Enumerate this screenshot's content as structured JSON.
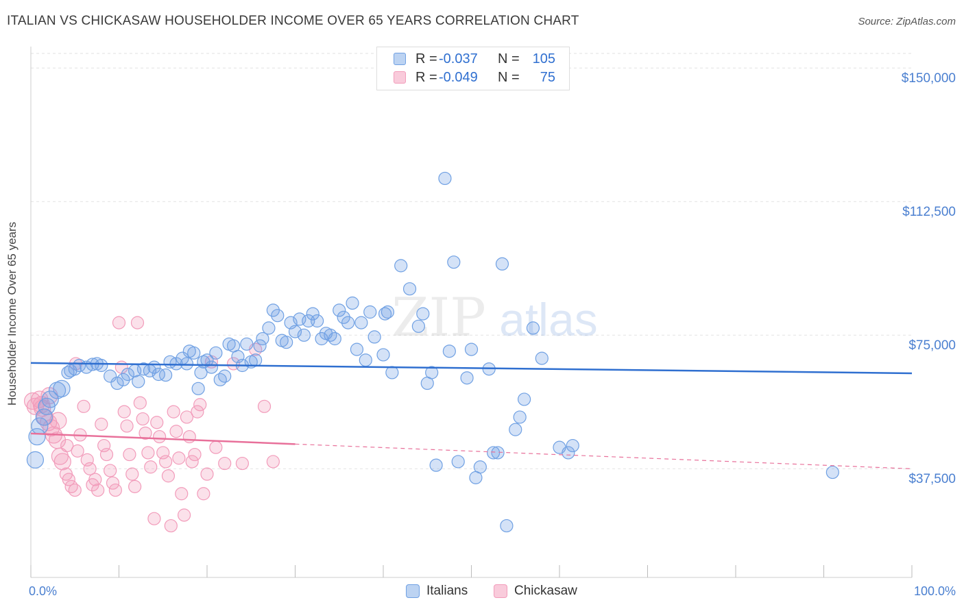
{
  "title": "ITALIAN VS CHICKASAW HOUSEHOLDER INCOME OVER 65 YEARS CORRELATION CHART",
  "source": "Source: ZipAtlas.com",
  "watermark": {
    "zip": "ZIP",
    "atlas": "atlas"
  },
  "colors": {
    "italians": "#6fa0e3",
    "chickasaw": "#f29bba",
    "italians_line": "#2f6fd0",
    "chickasaw_line": "#e8709a",
    "tick_text": "#4a7fd0"
  },
  "legend": {
    "rows": [
      {
        "r_label": "R =",
        "r_value": "-0.037",
        "n_label": "N =",
        "n_value": "105"
      },
      {
        "r_label": "R =",
        "r_value": "-0.049",
        "n_label": "N =",
        "n_value": "75"
      }
    ]
  },
  "chart_data": {
    "type": "scatter",
    "ylabel": "Householder Income Over 65 years",
    "xlabel": "",
    "xlim": [
      0,
      100
    ],
    "ylim": [
      7000,
      156000
    ],
    "y_ticks": [
      {
        "value": 37500,
        "label": "$37,500"
      },
      {
        "value": 75000,
        "label": "$75,000"
      },
      {
        "value": 112500,
        "label": "$112,500"
      },
      {
        "value": 150000,
        "label": "$150,000"
      }
    ],
    "x_tick_labels": {
      "min": "0.0%",
      "max": "100.0%"
    },
    "grid": true,
    "legend_position": "top-center",
    "series": [
      {
        "name": "Italians",
        "regression": {
          "x": [
            0,
            100
          ],
          "y": [
            67200,
            64300
          ],
          "solid_until": 100
        },
        "points": [
          [
            0.5,
            40000
          ],
          [
            0.7,
            46500
          ],
          [
            1.0,
            49500
          ],
          [
            1.5,
            52000
          ],
          [
            1.8,
            55000
          ],
          [
            2.2,
            57000
          ],
          [
            3.0,
            59500
          ],
          [
            3.5,
            60000
          ],
          [
            4.2,
            64500
          ],
          [
            4.5,
            65000
          ],
          [
            5.0,
            65500
          ],
          [
            5.5,
            66500
          ],
          [
            6.3,
            66000
          ],
          [
            7.0,
            66800
          ],
          [
            7.5,
            67000
          ],
          [
            8.0,
            66500
          ],
          [
            9.0,
            63500
          ],
          [
            9.8,
            61500
          ],
          [
            10.5,
            62500
          ],
          [
            11.0,
            64000
          ],
          [
            11.8,
            65000
          ],
          [
            12.2,
            62000
          ],
          [
            12.8,
            65500
          ],
          [
            13.5,
            65000
          ],
          [
            14.0,
            66000
          ],
          [
            14.5,
            64000
          ],
          [
            15.3,
            63800
          ],
          [
            15.8,
            67500
          ],
          [
            16.5,
            67000
          ],
          [
            17.2,
            68500
          ],
          [
            17.7,
            67000
          ],
          [
            18.0,
            70500
          ],
          [
            18.5,
            70000
          ],
          [
            19.0,
            60000
          ],
          [
            19.3,
            64500
          ],
          [
            19.6,
            67500
          ],
          [
            20.0,
            68000
          ],
          [
            20.5,
            66000
          ],
          [
            21.0,
            70000
          ],
          [
            21.5,
            62500
          ],
          [
            22.0,
            63500
          ],
          [
            22.5,
            72500
          ],
          [
            23.0,
            72000
          ],
          [
            23.5,
            69000
          ],
          [
            24.0,
            66500
          ],
          [
            24.5,
            72500
          ],
          [
            25.0,
            67500
          ],
          [
            25.5,
            68000
          ],
          [
            26.0,
            72000
          ],
          [
            26.3,
            74000
          ],
          [
            27.0,
            77000
          ],
          [
            27.5,
            82000
          ],
          [
            28.0,
            80500
          ],
          [
            28.5,
            73500
          ],
          [
            29.0,
            73000
          ],
          [
            29.5,
            78500
          ],
          [
            30.0,
            76000
          ],
          [
            30.5,
            79500
          ],
          [
            31.0,
            75000
          ],
          [
            31.5,
            79000
          ],
          [
            32.0,
            81000
          ],
          [
            32.5,
            79000
          ],
          [
            33.0,
            74000
          ],
          [
            33.5,
            75500
          ],
          [
            34.0,
            75000
          ],
          [
            34.5,
            74000
          ],
          [
            35.0,
            82000
          ],
          [
            35.5,
            80000
          ],
          [
            36.0,
            78500
          ],
          [
            36.5,
            84000
          ],
          [
            37.0,
            71000
          ],
          [
            37.5,
            78500
          ],
          [
            38.0,
            68000
          ],
          [
            38.5,
            81500
          ],
          [
            39.0,
            74500
          ],
          [
            40.0,
            69500
          ],
          [
            40.5,
            81500
          ],
          [
            41.0,
            64500
          ],
          [
            42.0,
            94500
          ],
          [
            43.0,
            88000
          ],
          [
            40.2,
            81000
          ],
          [
            44.0,
            77500
          ],
          [
            44.5,
            81000
          ],
          [
            45.0,
            61500
          ],
          [
            45.5,
            64500
          ],
          [
            46.0,
            38500
          ],
          [
            47.0,
            119000
          ],
          [
            47.5,
            70500
          ],
          [
            48.0,
            95500
          ],
          [
            48.5,
            39500
          ],
          [
            49.5,
            63000
          ],
          [
            50.0,
            71000
          ],
          [
            50.5,
            35000
          ],
          [
            51.0,
            38000
          ],
          [
            52.0,
            65500
          ],
          [
            52.5,
            42000
          ],
          [
            53.0,
            42000
          ],
          [
            53.5,
            95000
          ],
          [
            55.0,
            48500
          ],
          [
            55.5,
            52000
          ],
          [
            56.0,
            57000
          ],
          [
            57.0,
            77000
          ],
          [
            58.0,
            68500
          ],
          [
            60.0,
            43500
          ],
          [
            61.0,
            42000
          ],
          [
            61.5,
            44000
          ],
          [
            91.0,
            36500
          ],
          [
            54.0,
            21500
          ]
        ]
      },
      {
        "name": "Chickasaw",
        "regression": {
          "x": [
            0,
            100
          ],
          "y": [
            47400,
            37500
          ],
          "solid_until": 30
        },
        "points": [
          [
            0.2,
            56500
          ],
          [
            0.5,
            55000
          ],
          [
            1.0,
            57000
          ],
          [
            1.3,
            54500
          ],
          [
            1.6,
            52000
          ],
          [
            2.0,
            50500
          ],
          [
            2.3,
            49000
          ],
          [
            2.6,
            47000
          ],
          [
            3.0,
            45500
          ],
          [
            3.3,
            41000
          ],
          [
            3.6,
            39500
          ],
          [
            4.0,
            36000
          ],
          [
            4.3,
            34500
          ],
          [
            4.6,
            32500
          ],
          [
            5.0,
            31500
          ],
          [
            5.3,
            42500
          ],
          [
            5.6,
            47000
          ],
          [
            6.0,
            55000
          ],
          [
            6.4,
            40000
          ],
          [
            6.7,
            37500
          ],
          [
            7.0,
            33000
          ],
          [
            7.3,
            34500
          ],
          [
            7.6,
            31500
          ],
          [
            8.0,
            50000
          ],
          [
            8.3,
            44000
          ],
          [
            8.6,
            41500
          ],
          [
            9.0,
            37000
          ],
          [
            9.3,
            33500
          ],
          [
            9.6,
            31500
          ],
          [
            10.0,
            78500
          ],
          [
            10.3,
            66000
          ],
          [
            10.6,
            53500
          ],
          [
            10.9,
            49500
          ],
          [
            11.2,
            41500
          ],
          [
            11.5,
            36000
          ],
          [
            11.8,
            32500
          ],
          [
            12.1,
            78500
          ],
          [
            12.4,
            56000
          ],
          [
            12.7,
            51500
          ],
          [
            13.0,
            47500
          ],
          [
            13.3,
            42000
          ],
          [
            13.6,
            38000
          ],
          [
            14.0,
            23500
          ],
          [
            14.3,
            50500
          ],
          [
            14.6,
            46500
          ],
          [
            15.0,
            42000
          ],
          [
            15.3,
            39500
          ],
          [
            15.6,
            35500
          ],
          [
            15.9,
            21500
          ],
          [
            16.2,
            53500
          ],
          [
            16.5,
            48000
          ],
          [
            16.8,
            40500
          ],
          [
            17.1,
            30500
          ],
          [
            17.4,
            24500
          ],
          [
            17.7,
            52000
          ],
          [
            18.0,
            46500
          ],
          [
            18.3,
            39500
          ],
          [
            18.6,
            41500
          ],
          [
            18.9,
            53500
          ],
          [
            19.2,
            55500
          ],
          [
            19.6,
            30500
          ],
          [
            20.0,
            36000
          ],
          [
            20.5,
            67500
          ],
          [
            21.0,
            43500
          ],
          [
            22.0,
            39000
          ],
          [
            23.0,
            67000
          ],
          [
            24.0,
            39000
          ],
          [
            25.5,
            71000
          ],
          [
            26.5,
            55000
          ],
          [
            27.5,
            39500
          ],
          [
            1.2,
            55500
          ],
          [
            2.1,
            58000
          ],
          [
            3.1,
            51000
          ],
          [
            4.1,
            44000
          ],
          [
            5.1,
            67000
          ]
        ]
      }
    ]
  }
}
